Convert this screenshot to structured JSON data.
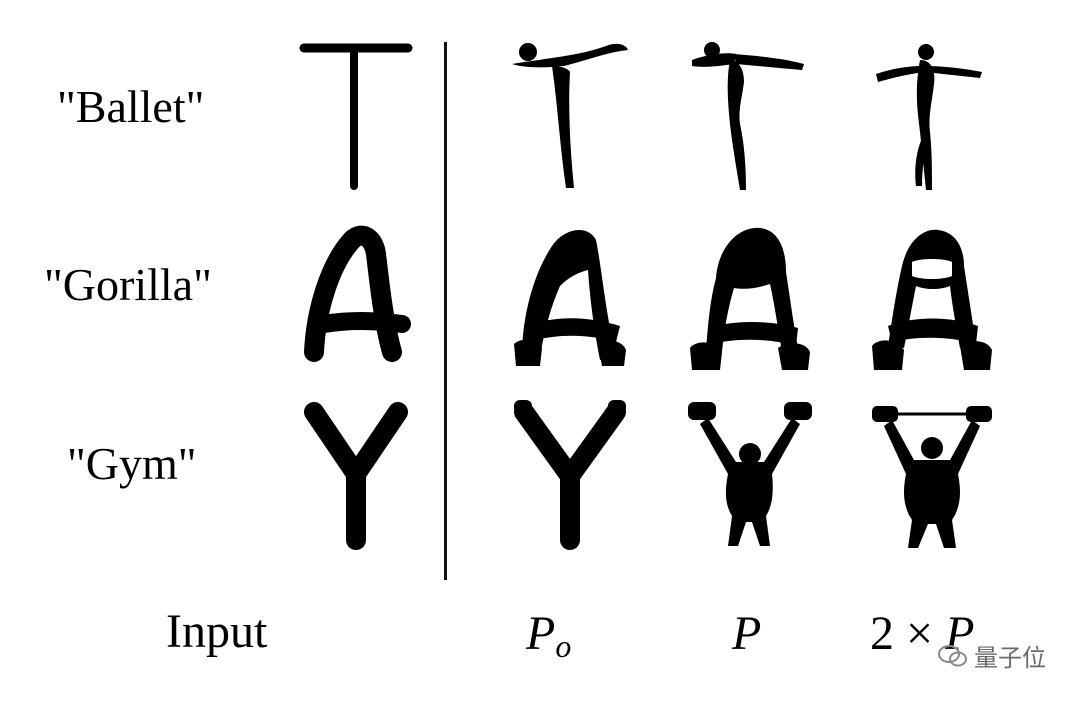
{
  "rows": [
    {
      "prompt": "\"Ballet\"",
      "letter": "T"
    },
    {
      "prompt": "\"Gorilla\"",
      "letter": "A"
    },
    {
      "prompt": "\"Gym\"",
      "letter": "Y"
    }
  ],
  "columns": {
    "input": "Input",
    "p0_main": "P",
    "p0_sub": "o",
    "p": "P",
    "two_p_prefix": "2 × ",
    "two_p_main": "P"
  },
  "watermark": {
    "text": "量子位",
    "logo_icon": "wechat-icon"
  },
  "colors": {
    "ink": "#000000",
    "divider": "#111111",
    "watermark": "#6a6a6a"
  }
}
